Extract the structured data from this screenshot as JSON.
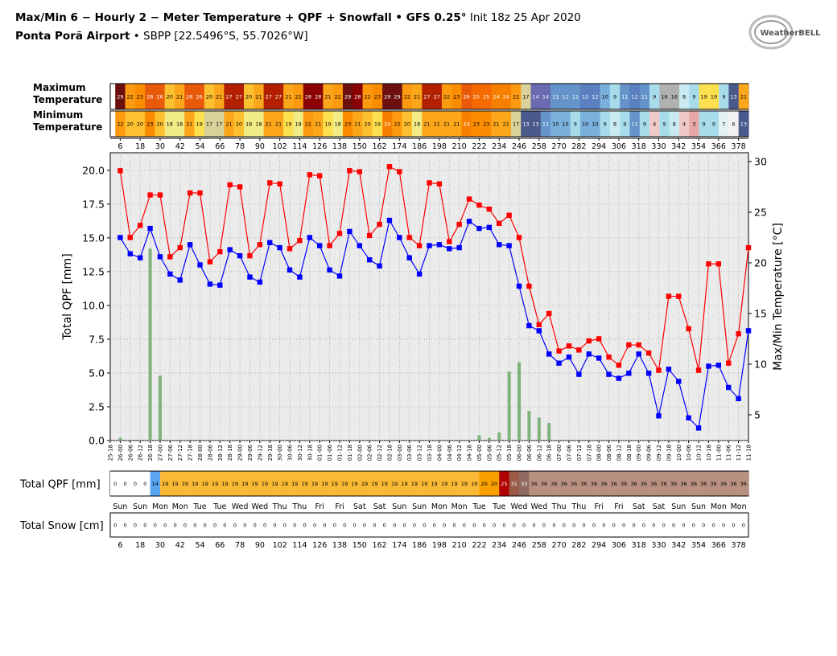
{
  "header": {
    "title": "Max/Min 6 − Hourly 2 − Meter Temperature + QPF + Snowfall • GFS 0.25°",
    "init": "Init 18z 25 Apr 2020",
    "station": "Ponta Porã Airport",
    "location": "• SBPP [22.5496°S, 55.7026°W]",
    "logo": "WeatherBELL"
  },
  "top_table": {
    "hours": [
      6,
      18,
      30,
      42,
      54,
      66,
      78,
      90,
      102,
      114,
      126,
      138,
      150,
      162,
      174,
      186,
      198,
      210,
      222,
      234,
      246,
      258,
      270,
      282,
      294,
      306,
      318,
      330,
      342,
      354,
      366,
      378
    ],
    "rows": [
      {
        "label": "Maximum Temperature",
        "values": [
          29,
          22,
          23,
          26,
          26,
          20,
          21,
          26,
          26,
          20,
          21,
          27,
          27,
          20,
          21,
          27,
          27,
          21,
          22,
          28,
          28,
          21,
          22,
          29,
          28,
          22,
          23,
          29,
          29,
          22,
          21,
          27,
          27,
          22,
          23,
          26,
          25,
          25,
          24,
          24,
          22,
          17,
          14,
          14,
          11,
          11,
          11,
          12,
          12,
          10,
          9,
          11,
          12,
          11,
          9,
          16,
          16,
          8,
          9,
          19,
          19,
          9,
          13,
          21
        ]
      },
      {
        "label": "Minimum Temperature",
        "values": [
          22,
          20,
          20,
          23,
          20,
          18,
          18,
          21,
          19,
          17,
          17,
          21,
          20,
          18,
          18,
          21,
          21,
          19,
          18,
          22,
          21,
          19,
          18,
          23,
          21,
          20,
          19,
          24,
          22,
          20,
          18,
          21,
          21,
          21,
          21,
          24,
          23,
          23,
          21,
          21,
          17,
          13,
          13,
          11,
          10,
          10,
          9,
          10,
          10,
          9,
          8,
          9,
          11,
          9,
          4,
          9,
          8,
          4,
          3,
          9,
          9,
          7,
          6,
          13
        ]
      }
    ]
  },
  "chart_data": {
    "type": "line",
    "x": [
      "25-18",
      "26-00",
      "26-06",
      "26-12",
      "26-18",
      "27-00",
      "27-06",
      "27-12",
      "27-18",
      "28-00",
      "28-06",
      "28-12",
      "28-18",
      "29-00",
      "29-06",
      "29-12",
      "29-18",
      "30-00",
      "30-06",
      "30-12",
      "30-18",
      "01-00",
      "01-06",
      "01-12",
      "01-18",
      "02-00",
      "02-06",
      "02-12",
      "02-18",
      "03-00",
      "03-06",
      "03-12",
      "03-18",
      "04-00",
      "04-06",
      "04-12",
      "04-18",
      "05-00",
      "05-06",
      "05-12",
      "05-18",
      "06-00",
      "06-06",
      "06-12",
      "06-18",
      "07-00",
      "07-06",
      "07-12",
      "07-18",
      "08-00",
      "08-06",
      "08-12",
      "08-18",
      "09-00",
      "09-06",
      "09-12",
      "09-18",
      "10-00",
      "10-06",
      "10-12",
      "10-18",
      "11-00",
      "11-06",
      "11-12",
      "11-18"
    ],
    "ylabel": "Total QPF  [mm]",
    "y2label": "Max/Min Temperature  [°C]",
    "ylim": [
      0,
      21.3
    ],
    "yticks": [
      {
        "value": 0,
        "label": "0.0"
      },
      {
        "value": 2.5,
        "label": "2.5"
      },
      {
        "value": 5,
        "label": "5.0"
      },
      {
        "value": 7.5,
        "label": "7.5"
      },
      {
        "value": 10,
        "label": "10.0"
      },
      {
        "value": 12.5,
        "label": "12.5"
      },
      {
        "value": 15,
        "label": "15.0"
      },
      {
        "value": 17.5,
        "label": "17.5"
      },
      {
        "value": 20,
        "label": "20.0"
      }
    ],
    "y2lim": [
      2.46,
      30.87
    ],
    "y2ticks": [
      5,
      10,
      15,
      20,
      25,
      30
    ],
    "grid": true,
    "series": [
      {
        "type": "bar",
        "axis": "y",
        "color": "#7fb27c",
        "values": [
          null,
          0.2,
          0,
          0,
          14.2,
          4.8,
          0,
          0,
          0,
          0,
          0,
          0,
          0,
          0,
          0,
          0,
          0,
          0,
          0,
          0,
          0,
          0,
          0,
          0,
          0,
          0,
          0,
          0,
          0,
          0,
          0,
          0,
          0,
          0,
          0,
          0,
          0,
          0.4,
          0.2,
          0.6,
          5.1,
          5.8,
          2.2,
          1.7,
          1.3,
          0,
          0,
          0,
          0,
          0,
          0,
          0,
          0,
          0,
          0,
          0,
          0,
          0,
          0,
          0,
          0,
          0,
          0,
          0,
          0
        ]
      },
      {
        "type": "line",
        "axis": "y2",
        "color": "#ff0000",
        "values": [
          null,
          29.1,
          22.5,
          23.7,
          26.7,
          26.7,
          20.6,
          21.5,
          26.9,
          26.9,
          20.1,
          21.1,
          27.7,
          27.5,
          20.7,
          21.8,
          27.9,
          27.8,
          21.4,
          22.2,
          28.7,
          28.6,
          21.7,
          22.9,
          29.1,
          29.0,
          22.7,
          23.8,
          29.5,
          29.0,
          22.5,
          21.7,
          27.9,
          27.8,
          22.1,
          23.8,
          26.3,
          25.7,
          25.3,
          23.9,
          24.7,
          22.5,
          17.7,
          13.9,
          15.0,
          11.3,
          11.8,
          11.4,
          12.3,
          12.5,
          10.7,
          9.9,
          11.9,
          11.9,
          11.1,
          9.4,
          16.7,
          16.7,
          13.5,
          9.4,
          19.9,
          19.9,
          10.1,
          13.0,
          21.5
        ]
      },
      {
        "type": "line",
        "axis": "y2",
        "color": "#0000ff",
        "values": [
          null,
          22.5,
          20.9,
          20.5,
          23.4,
          20.6,
          18.9,
          18.3,
          21.8,
          19.8,
          17.9,
          17.8,
          21.3,
          20.7,
          18.6,
          18.1,
          22.0,
          21.5,
          19.3,
          18.6,
          22.5,
          21.7,
          19.3,
          18.7,
          23.1,
          21.7,
          20.3,
          19.7,
          24.2,
          22.5,
          20.5,
          18.9,
          21.7,
          21.8,
          21.4,
          21.5,
          24.1,
          23.4,
          23.5,
          21.8,
          21.7,
          17.7,
          13.8,
          13.3,
          11.0,
          10.1,
          10.7,
          9.0,
          11.0,
          10.6,
          9.0,
          8.6,
          9.1,
          11.0,
          9.1,
          4.9,
          9.5,
          8.3,
          4.7,
          3.7,
          9.8,
          9.9,
          7.7,
          6.6,
          13.3
        ]
      }
    ]
  },
  "bottom_table": {
    "days": [
      "Sun",
      "Sun",
      "Mon",
      "Mon",
      "Tue",
      "Tue",
      "Wed",
      "Wed",
      "Thu",
      "Thu",
      "Fri",
      "Fri",
      "Sat",
      "Sat",
      "Sun",
      "Sun",
      "Mon",
      "Mon",
      "Tue",
      "Tue",
      "Wed",
      "Wed",
      "Thu",
      "Thu",
      "Fri",
      "Fri",
      "Sat",
      "Sat",
      "Sun",
      "Sun",
      "Mon",
      "Mon"
    ],
    "rows": [
      {
        "label": "Total QPF [mm]",
        "values": [
          0,
          0,
          0,
          0,
          14,
          19,
          19,
          19,
          19,
          19,
          19,
          19,
          19,
          19,
          19,
          19,
          19,
          19,
          19,
          19,
          19,
          19,
          19,
          19,
          19,
          19,
          19,
          19,
          19,
          19,
          19,
          19,
          19,
          19,
          19,
          19,
          19,
          20,
          20,
          25,
          31,
          33,
          36,
          36,
          36,
          36,
          36,
          36,
          36,
          36,
          36,
          36,
          36,
          36,
          36,
          36,
          36,
          36,
          36,
          36,
          36,
          36,
          36,
          36
        ]
      },
      {
        "label": "Total Snow [cm]",
        "values": [
          0,
          0,
          0,
          0,
          0,
          0,
          0,
          0,
          0,
          0,
          0,
          0,
          0,
          0,
          0,
          0,
          0,
          0,
          0,
          0,
          0,
          0,
          0,
          0,
          0,
          0,
          0,
          0,
          0,
          0,
          0,
          0,
          0,
          0,
          0,
          0,
          0,
          0,
          0,
          0,
          0,
          0,
          0,
          0,
          0,
          0,
          0,
          0,
          0,
          0,
          0,
          0,
          0,
          0,
          0,
          0,
          0,
          0,
          0,
          0,
          0,
          0,
          0,
          0
        ]
      }
    ]
  }
}
